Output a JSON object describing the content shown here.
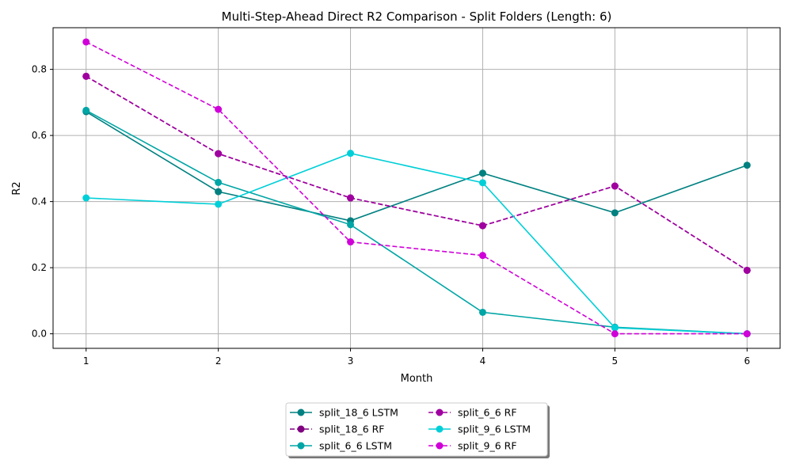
{
  "chart_data": {
    "type": "line",
    "title": "Multi-Step-Ahead Direct R2 Comparison - Split Folders (Length: 6)",
    "xlabel": "Month",
    "ylabel": "R2",
    "x": [
      1,
      2,
      3,
      4,
      5,
      6
    ],
    "x_ticks": [
      "1",
      "2",
      "3",
      "4",
      "5",
      "6"
    ],
    "y_ticks": [
      "0.0",
      "0.2",
      "0.4",
      "0.6",
      "0.8"
    ],
    "xlim": [
      0.75,
      6.25
    ],
    "ylim": [
      -0.044,
      0.926
    ],
    "grid": true,
    "legend_position": "bottom-center",
    "series": [
      {
        "name": "split_18_6 LSTM",
        "color": "#008080",
        "dash": false,
        "values": [
          0.672,
          0.43,
          0.342,
          0.486,
          0.366,
          0.51
        ]
      },
      {
        "name": "split_18_6 RF",
        "color": "#800080",
        "dash": true,
        "values": [
          0.779,
          0.545,
          0.411,
          0.327,
          0.447,
          0.192
        ]
      },
      {
        "name": "split_6_6 LSTM",
        "color": "#00a5a5",
        "dash": false,
        "values": [
          0.676,
          0.458,
          0.33,
          0.065,
          0.02,
          0.0
        ]
      },
      {
        "name": "split_6_6 RF",
        "color": "#a000a0",
        "dash": true,
        "values": [
          0.779,
          0.545,
          0.411,
          0.327,
          0.447,
          0.192
        ]
      },
      {
        "name": "split_9_6 LSTM",
        "color": "#00cfd8",
        "dash": false,
        "values": [
          0.411,
          0.392,
          0.546,
          0.457,
          0.018,
          0.0
        ]
      },
      {
        "name": "split_9_6 RF",
        "color": "#d000d8",
        "dash": true,
        "values": [
          0.883,
          0.679,
          0.278,
          0.237,
          0.0,
          0.0
        ]
      }
    ]
  }
}
